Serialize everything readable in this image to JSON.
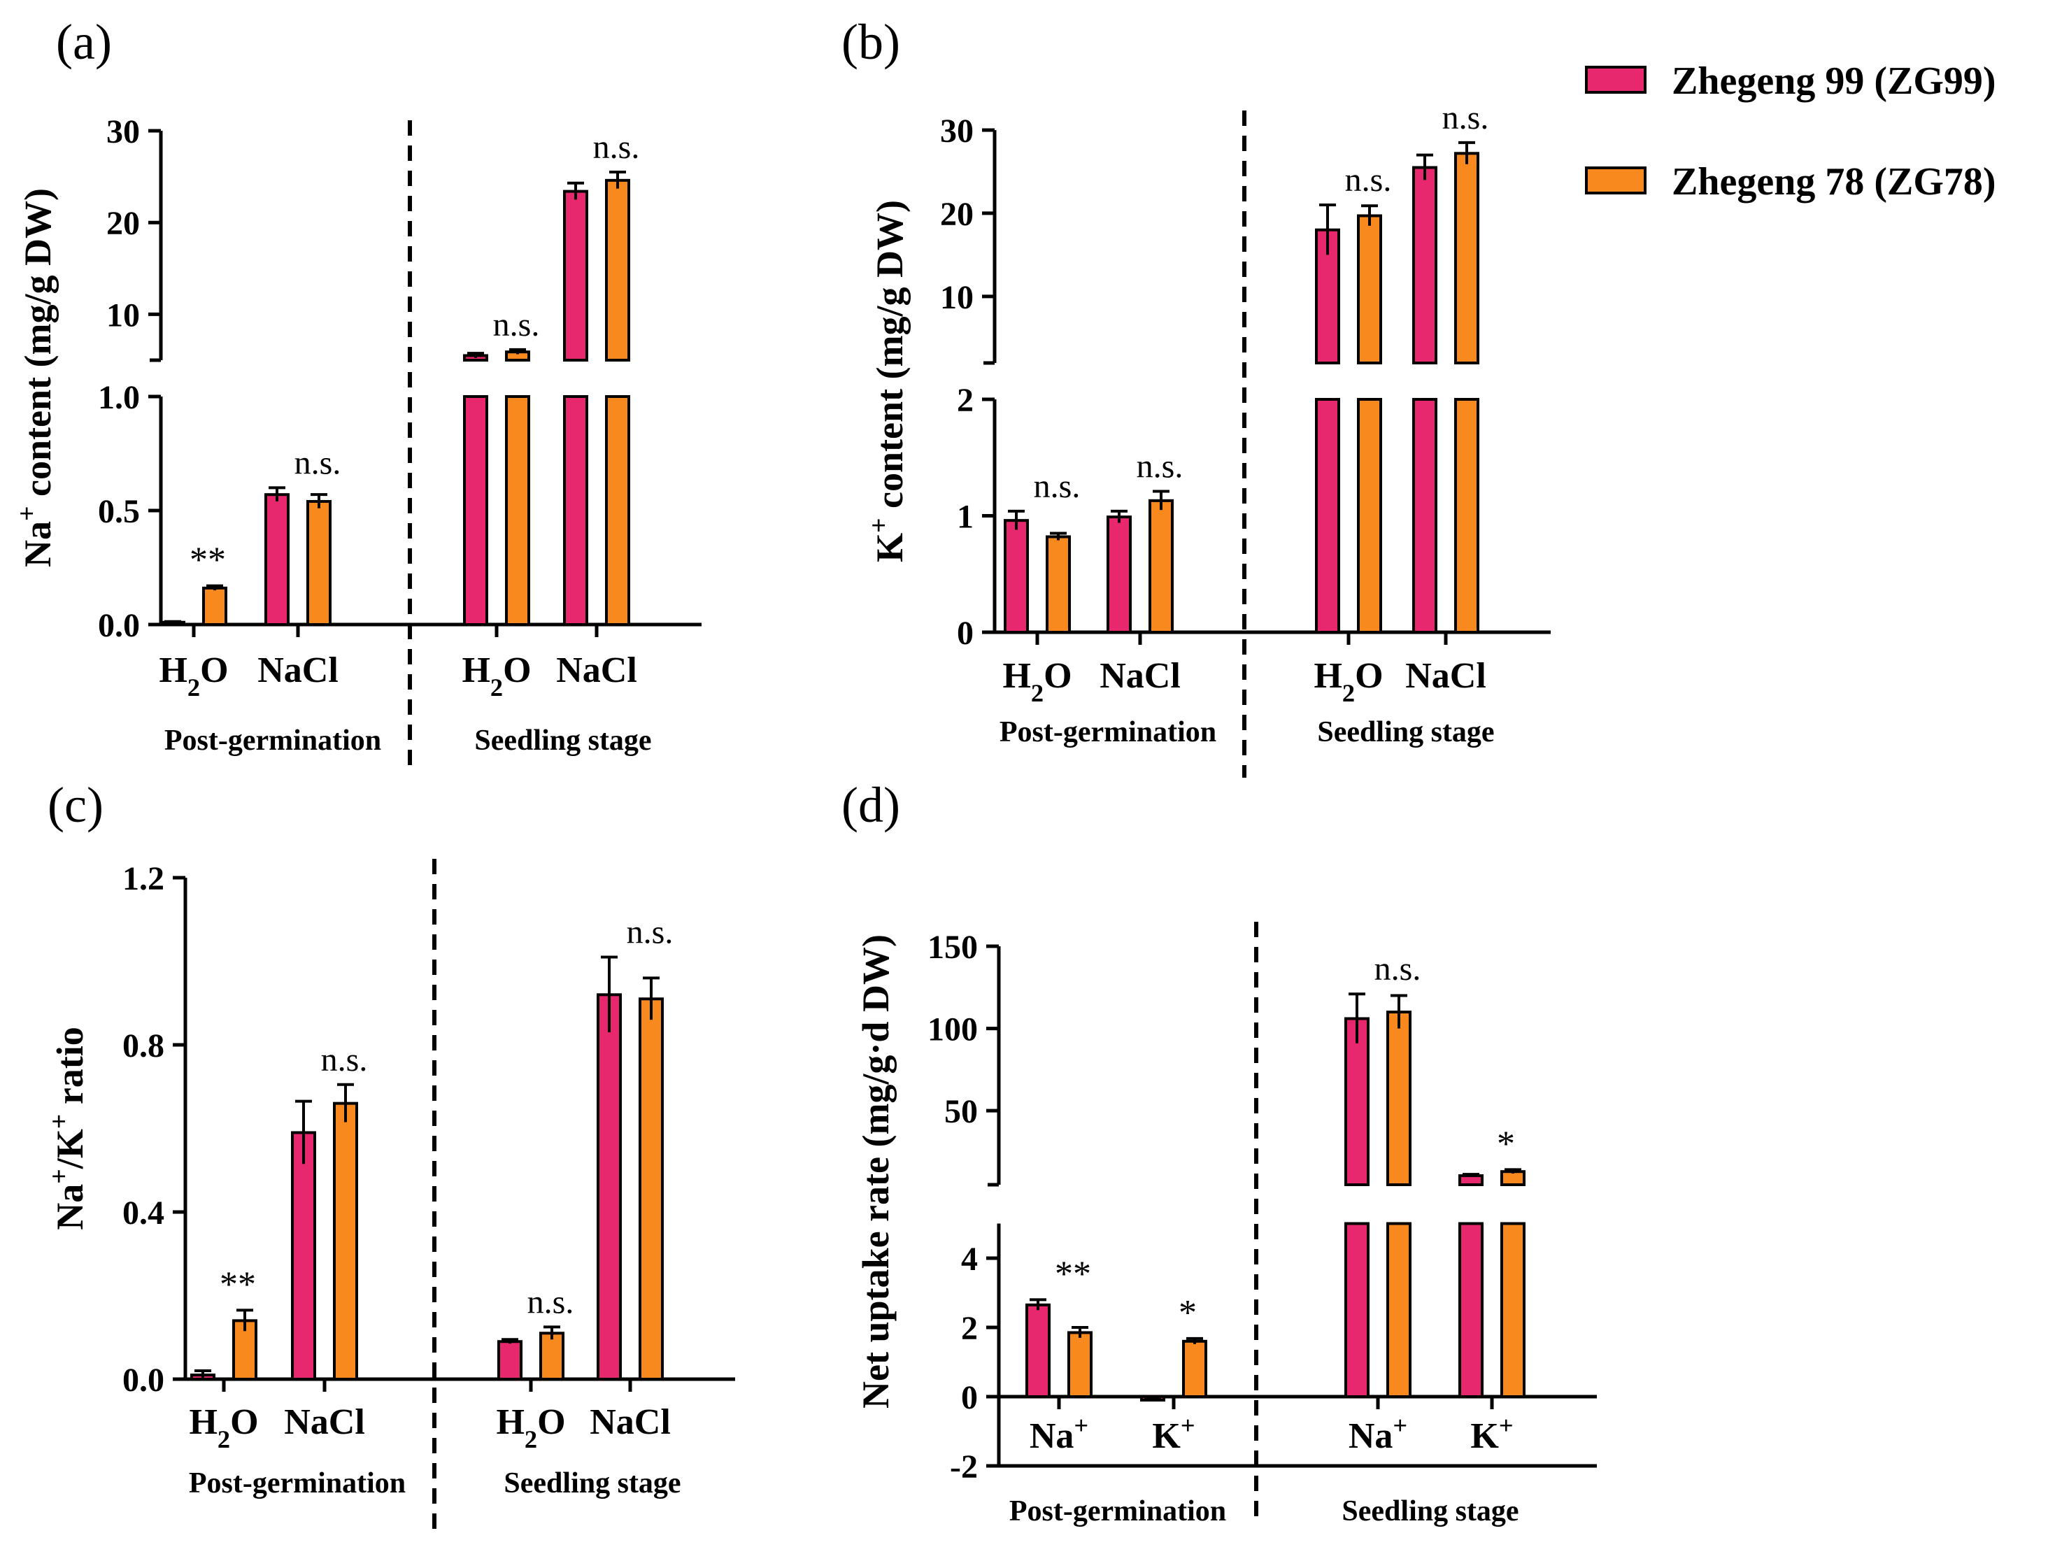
{
  "colors": {
    "zg99": "#e8286e",
    "zg78": "#f7891f",
    "axis": "#000000"
  },
  "legend": [
    {
      "series": "zg99",
      "label": "Zhegeng 99 (ZG99)"
    },
    {
      "series": "zg78",
      "label": "Zhegeng 78 (ZG78)"
    }
  ],
  "chart_data": [
    {
      "id": "a",
      "panel_label": "(a)",
      "type": "bar",
      "ylabel_html": "Na<tspan baseline-shift=\"super\" font-size=\"70%\">+</tspan> content (mg/g DW)",
      "lower": {
        "min": 0.0,
        "max": 1.0,
        "ticks": [
          "0.0",
          "0.5",
          "1.0"
        ]
      },
      "upper": {
        "min": 5,
        "max": 30,
        "ticks": [
          "10",
          "20",
          "30"
        ]
      },
      "groups": [
        {
          "name": "Post-germination",
          "categories": [
            {
              "label_html": "H<tspan baseline-shift=\"sub\" font-size=\"70%\">2</tspan>O",
              "values": [
                0.01,
                0.16
              ],
              "errors": [
                0.003,
                0.01
              ],
              "sig": "**"
            },
            {
              "label_html": "NaCl",
              "values": [
                0.57,
                0.54
              ],
              "errors": [
                0.03,
                0.03
              ],
              "sig": "n.s."
            }
          ]
        },
        {
          "name": "Seedling stage",
          "categories": [
            {
              "label_html": "H<tspan baseline-shift=\"sub\" font-size=\"70%\">2</tspan>O",
              "values": [
                5.5,
                5.9
              ],
              "errors": [
                0.25,
                0.25
              ],
              "sig": "n.s."
            },
            {
              "label_html": "NaCl",
              "values": [
                23.4,
                24.6
              ],
              "errors": [
                0.9,
                0.9
              ],
              "sig": "n.s."
            }
          ]
        }
      ]
    },
    {
      "id": "b",
      "panel_label": "(b)",
      "type": "bar",
      "ylabel_html": "K<tspan baseline-shift=\"super\" font-size=\"70%\">+</tspan> content (mg/g DW)",
      "lower": {
        "min": 0,
        "max": 2,
        "ticks": [
          "0",
          "1",
          "2"
        ]
      },
      "upper": {
        "min": 2,
        "max": 30,
        "ticks": [
          "10",
          "20",
          "30"
        ]
      },
      "groups": [
        {
          "name": "Post-germination",
          "categories": [
            {
              "label_html": "H<tspan baseline-shift=\"sub\" font-size=\"70%\">2</tspan>O",
              "values": [
                0.96,
                0.82
              ],
              "errors": [
                0.08,
                0.03
              ],
              "sig": "n.s."
            },
            {
              "label_html": "NaCl",
              "values": [
                0.99,
                1.13
              ],
              "errors": [
                0.05,
                0.08
              ],
              "sig": "n.s."
            }
          ]
        },
        {
          "name": "Seedling stage",
          "categories": [
            {
              "label_html": "H<tspan baseline-shift=\"sub\" font-size=\"70%\">2</tspan>O",
              "values": [
                18.0,
                19.7
              ],
              "errors": [
                3.0,
                1.2
              ],
              "sig": "n.s."
            },
            {
              "label_html": "NaCl",
              "values": [
                25.5,
                27.2
              ],
              "errors": [
                1.5,
                1.3
              ],
              "sig": "n.s."
            }
          ]
        }
      ]
    },
    {
      "id": "c",
      "panel_label": "(c)",
      "type": "bar",
      "ylabel_html": "Na<tspan baseline-shift=\"super\" font-size=\"70%\">+</tspan>/K<tspan baseline-shift=\"super\" font-size=\"70%\">+</tspan> ratio",
      "lower": {
        "min": 0.0,
        "max": 1.2,
        "ticks": [
          "0.0",
          "0.4",
          "0.8",
          "1.2"
        ]
      },
      "upper": null,
      "groups": [
        {
          "name": "Post-germination",
          "categories": [
            {
              "label_html": "H<tspan baseline-shift=\"sub\" font-size=\"70%\">2</tspan>O",
              "values": [
                0.01,
                0.14
              ],
              "errors": [
                0.01,
                0.025
              ],
              "sig": "**"
            },
            {
              "label_html": "NaCl",
              "values": [
                0.59,
                0.66
              ],
              "errors": [
                0.075,
                0.045
              ],
              "sig": "n.s."
            }
          ]
        },
        {
          "name": "Seedling stage",
          "categories": [
            {
              "label_html": "H<tspan baseline-shift=\"sub\" font-size=\"70%\">2</tspan>O",
              "values": [
                0.09,
                0.11
              ],
              "errors": [
                0.005,
                0.015
              ],
              "sig": "n.s."
            },
            {
              "label_html": "NaCl",
              "values": [
                0.92,
                0.91
              ],
              "errors": [
                0.09,
                0.05
              ],
              "sig": "n.s."
            }
          ]
        }
      ]
    },
    {
      "id": "d",
      "panel_label": "(d)",
      "type": "bar",
      "ylabel_html": "Net uptake rate (mg/g·d DW)",
      "lower": {
        "min": -2,
        "max": 5,
        "ticks": [
          "-2",
          "0",
          "2",
          "4"
        ]
      },
      "upper": {
        "min": 5,
        "max": 150,
        "ticks": [
          "50",
          "100",
          "150"
        ]
      },
      "groups": [
        {
          "name": "Post-germination",
          "categories": [
            {
              "label_html": "Na<tspan baseline-shift=\"super\" font-size=\"70%\">+</tspan>",
              "values": [
                2.65,
                1.85
              ],
              "errors": [
                0.15,
                0.15
              ],
              "sig": "**"
            },
            {
              "label_html": "K<tspan baseline-shift=\"super\" font-size=\"70%\">+</tspan>",
              "values": [
                -0.1,
                1.6
              ],
              "errors": [
                0.02,
                0.08
              ],
              "sig": "*"
            }
          ]
        },
        {
          "name": "Seedling stage",
          "categories": [
            {
              "label_html": "Na<tspan baseline-shift=\"super\" font-size=\"70%\">+</tspan>",
              "values": [
                106,
                110
              ],
              "errors": [
                15,
                10
              ],
              "sig": "n.s."
            },
            {
              "label_html": "K<tspan baseline-shift=\"super\" font-size=\"70%\">+</tspan>",
              "values": [
                10.5,
                13
              ],
              "errors": [
                0.8,
                1.2
              ],
              "sig": "*"
            }
          ]
        }
      ]
    }
  ]
}
